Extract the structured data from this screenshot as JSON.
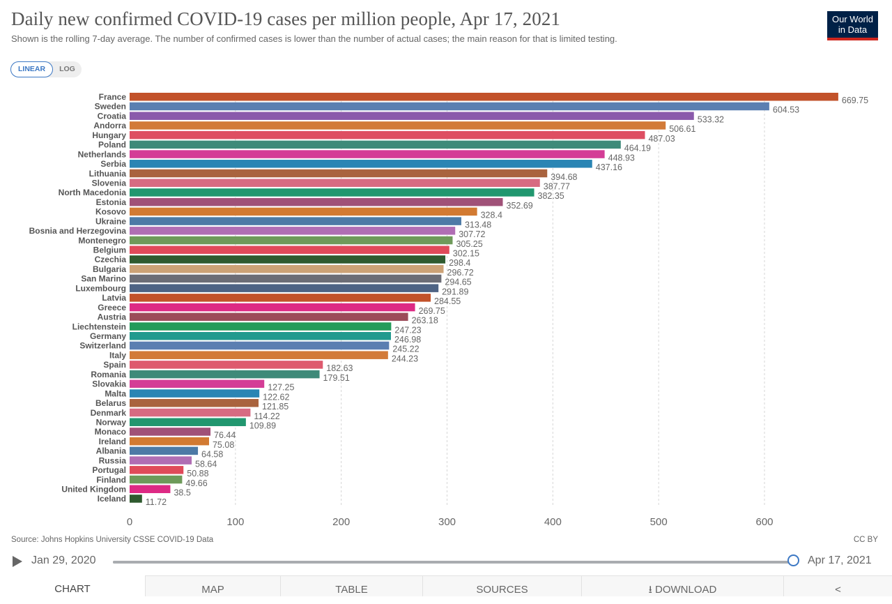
{
  "header": {
    "title": "Daily new confirmed COVID-19 cases per million people, Apr 17, 2021",
    "subtitle": "Shown is the rolling 7-day average. The number of confirmed cases is lower than the number of actual cases; the main reason for that is limited testing.",
    "logo_line1": "Our World",
    "logo_line2": "in Data"
  },
  "scale_toggle": {
    "linear": "LINEAR",
    "log": "LOG",
    "selected": "LINEAR"
  },
  "chart_data": {
    "type": "bar",
    "orientation": "horizontal",
    "title": "Daily new confirmed COVID-19 cases per million people, Apr 17, 2021",
    "xlabel": "",
    "ylabel": "",
    "xlim": [
      0,
      670
    ],
    "xticks": [
      0,
      100,
      200,
      300,
      400,
      500,
      600
    ],
    "grid": "vertical-dashed",
    "categories": [
      "France",
      "Sweden",
      "Croatia",
      "Andorra",
      "Hungary",
      "Poland",
      "Netherlands",
      "Serbia",
      "Lithuania",
      "Slovenia",
      "North Macedonia",
      "Estonia",
      "Kosovo",
      "Ukraine",
      "Bosnia and Herzegovina",
      "Montenegro",
      "Belgium",
      "Czechia",
      "Bulgaria",
      "San Marino",
      "Luxembourg",
      "Latvia",
      "Greece",
      "Austria",
      "Liechtenstein",
      "Germany",
      "Switzerland",
      "Italy",
      "Spain",
      "Romania",
      "Slovakia",
      "Malta",
      "Belarus",
      "Denmark",
      "Norway",
      "Monaco",
      "Ireland",
      "Albania",
      "Russia",
      "Portugal",
      "Finland",
      "United Kingdom",
      "Iceland"
    ],
    "values": [
      669.75,
      604.53,
      533.32,
      506.61,
      487.03,
      464.19,
      448.93,
      437.16,
      394.68,
      387.77,
      382.35,
      352.69,
      328.4,
      313.48,
      307.72,
      305.25,
      302.15,
      298.4,
      296.72,
      294.65,
      291.89,
      284.55,
      269.75,
      263.18,
      247.23,
      246.98,
      245.22,
      244.23,
      182.63,
      179.51,
      127.25,
      122.62,
      121.85,
      114.22,
      109.89,
      76.44,
      75.08,
      64.58,
      58.64,
      50.88,
      49.66,
      38.5,
      11.72
    ],
    "value_labels": [
      "669.75",
      "604.53",
      "533.32",
      "506.61",
      "487.03",
      "464.19",
      "448.93",
      "437.16",
      "394.68",
      "387.77",
      "382.35",
      "352.69",
      "328.4",
      "313.48",
      "307.72",
      "305.25",
      "302.15",
      "298.4",
      "296.72",
      "294.65",
      "291.89",
      "284.55",
      "269.75",
      "263.18",
      "247.23",
      "246.98",
      "245.22",
      "244.23",
      "182.63",
      "179.51",
      "127.25",
      "122.62",
      "121.85",
      "114.22",
      "109.89",
      "76.44",
      "75.08",
      "64.58",
      "58.64",
      "50.88",
      "49.66",
      "38.5",
      "11.72"
    ],
    "colors": [
      "#c2522a",
      "#5b7fb1",
      "#8a5aab",
      "#d27a38",
      "#de4e62",
      "#3e8a79",
      "#d43d96",
      "#2a85b4",
      "#a9633e",
      "#d76b82",
      "#21976f",
      "#a05178",
      "#d27a32",
      "#4d7aa6",
      "#b06eb4",
      "#6e9a5a",
      "#e04a5a",
      "#2f5a2f",
      "#cca276",
      "#6c6d76",
      "#4e6384",
      "#c2522a",
      "#dd2a84",
      "#9c4b59",
      "#249b5a",
      "#219a8e",
      "#5b7fb1",
      "#d27a38",
      "#de5a6e",
      "#3e8a79",
      "#d43d96",
      "#2a85b4",
      "#a9633e",
      "#d76b82",
      "#21976f",
      "#a05178",
      "#d27a32",
      "#4d7aa6",
      "#b06eb4",
      "#e04a5a",
      "#6e9a5a",
      "#dd2a84",
      "#2f5a2f"
    ]
  },
  "footer": {
    "source": "Source: Johns Hopkins University CSSE COVID-19 Data",
    "license": "CC BY"
  },
  "timeline": {
    "start_label": "Jan 29, 2020",
    "end_label": "Apr 17, 2021",
    "position_fraction": 1.0
  },
  "tabs": [
    {
      "label": "CHART",
      "active": true
    },
    {
      "label": "MAP",
      "active": false
    },
    {
      "label": "TABLE",
      "active": false
    },
    {
      "label": "SOURCES",
      "active": false
    },
    {
      "label": "⭳ DOWNLOAD",
      "active": false
    },
    {
      "label": "<",
      "icon": "share-icon",
      "active": false
    }
  ]
}
